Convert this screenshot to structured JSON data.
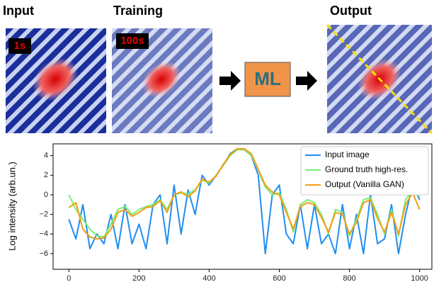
{
  "figure": {
    "panels": [
      "Input",
      "Training",
      "Output"
    ],
    "badges": [
      "1s",
      "100s"
    ],
    "method": "ML"
  },
  "chart_data": {
    "type": "line",
    "y_label": "Log intensity (arb.un.)",
    "x": [
      0,
      20,
      40,
      60,
      80,
      100,
      120,
      140,
      160,
      180,
      200,
      220,
      240,
      260,
      280,
      300,
      320,
      340,
      360,
      380,
      400,
      420,
      440,
      460,
      480,
      500,
      520,
      540,
      560,
      580,
      600,
      620,
      640,
      660,
      680,
      700,
      720,
      740,
      760,
      780,
      800,
      820,
      840,
      860,
      880,
      900,
      920,
      940,
      960,
      980,
      1000
    ],
    "xlim": [
      -45,
      1035
    ],
    "xticks": [
      0,
      200,
      400,
      600,
      800,
      1000
    ],
    "ylim": [
      -7.6,
      5.2
    ],
    "yticks": [
      {
        "value": -6,
        "label": "−6"
      },
      {
        "value": -4,
        "label": "−4"
      },
      {
        "value": -2,
        "label": "−2"
      },
      0,
      2,
      4
    ],
    "legend": "upper right",
    "series": [
      {
        "name": "Input image",
        "color": "#1f8ef1",
        "values": [
          -2.5,
          -4.5,
          -1,
          -5.5,
          -4,
          -5,
          -2,
          -5.5,
          -1,
          -5,
          -3,
          -5.5,
          -1,
          0,
          -5,
          1,
          -4,
          0.5,
          -2,
          2,
          1,
          2,
          3,
          4.2,
          4.7,
          4.6,
          4,
          2,
          -6,
          0,
          1,
          -4,
          -5,
          -1,
          -5.5,
          -1,
          -5,
          -4,
          -6,
          -1,
          -5.5,
          -2,
          -6,
          0,
          -5,
          -4.5,
          -1,
          -6,
          -2,
          1,
          -0.5
        ]
      },
      {
        "name": "Ground truth high-res.",
        "color": "#77ee77",
        "values": [
          0,
          -1.5,
          -2.5,
          -3.5,
          -4.2,
          -4.3,
          -3,
          -1.5,
          -1.2,
          -2,
          -1.5,
          -1.2,
          -1,
          -0.5,
          -1.5,
          0,
          0.2,
          0.1,
          0.5,
          1.5,
          1.2,
          2,
          3,
          4,
          4.6,
          4.6,
          4,
          2.5,
          0.8,
          0,
          0.2,
          -1.5,
          -3.8,
          -1,
          -0.5,
          -0.8,
          -2,
          -4,
          -1.5,
          -1.8,
          -4.2,
          -2.5,
          -0.5,
          -0.3,
          -2,
          -4,
          -1.5,
          -4.2,
          -0.5,
          0.5,
          -0.2
        ]
      },
      {
        "name": "Output (Vanilla GAN)",
        "color": "#f39c12",
        "values": [
          -1.3,
          -0.8,
          -3.5,
          -4.3,
          -4.5,
          -4.4,
          -3.5,
          -1.8,
          -1.5,
          -2.2,
          -1.8,
          -1.3,
          -1.2,
          -0.6,
          -1.8,
          0,
          0.3,
          -0.2,
          0.4,
          1.6,
          1.3,
          1.9,
          3.1,
          4.1,
          4.7,
          4.7,
          4.2,
          2.6,
          1,
          0.3,
          0,
          -1.8,
          -3.5,
          -1.2,
          -0.8,
          -1,
          -2.3,
          -3.8,
          -1.8,
          -2,
          -4,
          -2.8,
          -0.8,
          -0.5,
          -2.4,
          -3.8,
          -1.8,
          -4,
          -1,
          0.2,
          -1.5
        ]
      }
    ]
  }
}
